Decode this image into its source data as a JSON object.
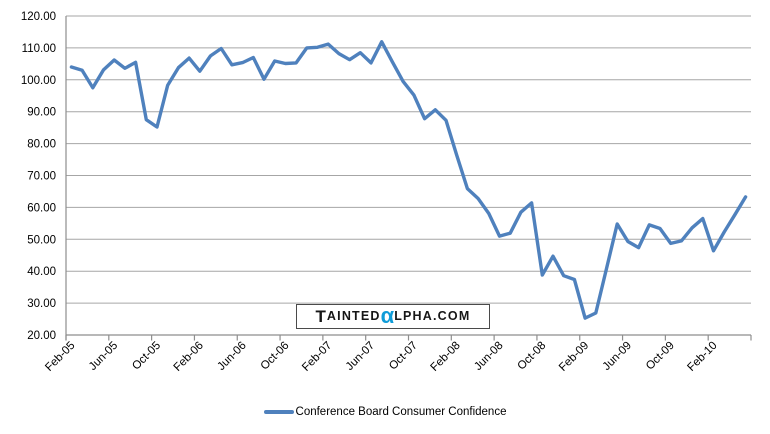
{
  "chart_data": {
    "type": "line",
    "title": "",
    "xlabel": "",
    "ylabel": "",
    "grid": "horizontal",
    "ylim": [
      20,
      120
    ],
    "y_step": 10,
    "y_tick_labels": [
      "20.00",
      "30.00",
      "40.00",
      "50.00",
      "60.00",
      "70.00",
      "80.00",
      "90.00",
      "100.00",
      "110.00",
      "120.00"
    ],
    "x_tick_every": 4,
    "x_tick_labels": [
      "Feb-05",
      "Jun-05",
      "Oct-05",
      "Feb-06",
      "Jun-06",
      "Oct-06",
      "Feb-07",
      "Jun-07",
      "Oct-07",
      "Feb-08",
      "Jun-08",
      "Oct-08",
      "Feb-09",
      "Jun-09",
      "Oct-09",
      "Feb-10"
    ],
    "x": [
      "Feb-05",
      "Mar-05",
      "Apr-05",
      "May-05",
      "Jun-05",
      "Jul-05",
      "Aug-05",
      "Sep-05",
      "Oct-05",
      "Nov-05",
      "Dec-05",
      "Jan-06",
      "Feb-06",
      "Mar-06",
      "Apr-06",
      "May-06",
      "Jun-06",
      "Jul-06",
      "Aug-06",
      "Sep-06",
      "Oct-06",
      "Nov-06",
      "Dec-06",
      "Jan-07",
      "Feb-07",
      "Mar-07",
      "Apr-07",
      "May-07",
      "Jun-07",
      "Jul-07",
      "Aug-07",
      "Sep-07",
      "Oct-07",
      "Nov-07",
      "Dec-07",
      "Jan-08",
      "Feb-08",
      "Mar-08",
      "Apr-08",
      "May-08",
      "Jun-08",
      "Jul-08",
      "Aug-08",
      "Sep-08",
      "Oct-08",
      "Nov-08",
      "Dec-08",
      "Jan-09",
      "Feb-09",
      "Mar-09",
      "Apr-09",
      "May-09",
      "Jun-09",
      "Jul-09",
      "Aug-09",
      "Sep-09",
      "Oct-09",
      "Nov-09",
      "Dec-09",
      "Jan-10",
      "Feb-10",
      "Mar-10",
      "Apr-10",
      "May-10"
    ],
    "series": [
      {
        "name": "Conference Board Consumer Confidence",
        "color": "#4F81BD",
        "values": [
          104.0,
          103.0,
          97.5,
          103.1,
          106.2,
          103.6,
          105.5,
          87.5,
          85.2,
          98.3,
          103.8,
          106.8,
          102.7,
          107.5,
          109.8,
          104.7,
          105.4,
          107.0,
          100.2,
          105.9,
          105.1,
          105.3,
          110.0,
          110.2,
          111.2,
          108.2,
          106.3,
          108.5,
          105.3,
          111.9,
          105.6,
          99.5,
          95.2,
          87.8,
          90.6,
          87.3,
          76.4,
          65.9,
          62.8,
          58.1,
          51.0,
          51.9,
          58.5,
          61.4,
          38.8,
          44.7,
          38.6,
          37.4,
          25.3,
          26.9,
          40.8,
          54.8,
          49.3,
          47.4,
          54.5,
          53.4,
          48.7,
          49.5,
          53.6,
          56.5,
          46.4,
          52.3,
          57.7,
          63.3
        ]
      }
    ],
    "legend_position": "bottom"
  },
  "legend": {
    "label": "Conference Board Consumer Confidence"
  },
  "watermark": {
    "cap": "T",
    "part1": "AINTED",
    "alpha": "α",
    "part2": "LPHA.COM",
    "alpha_color": "#0F9CD8"
  },
  "colors": {
    "line": "#4F81BD",
    "grid": "#A6A6A6",
    "axis": "#8E8E8E",
    "label_text": "#000000"
  }
}
